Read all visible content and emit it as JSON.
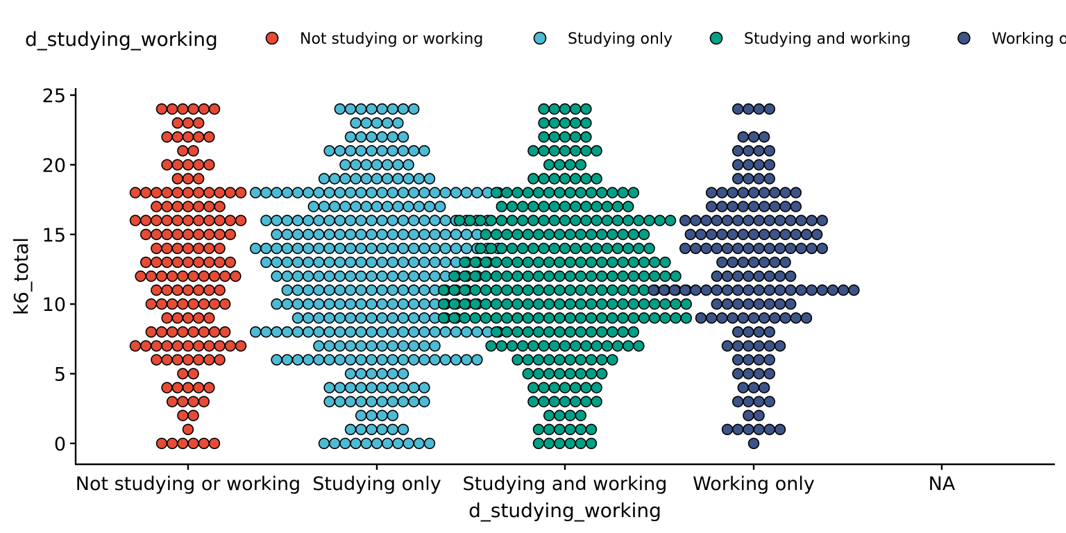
{
  "chart_data": {
    "type": "dotplot",
    "title": "",
    "xlabel": "d_studying_working",
    "ylabel": "k6_total",
    "ylim": [
      -1.5,
      25.5
    ],
    "y_ticks": [
      0,
      5,
      10,
      15,
      20,
      25
    ],
    "categories": [
      "Not studying or working",
      "Studying only",
      "Studying and working",
      "Working only",
      "NA"
    ],
    "legend": {
      "title": "d_studying_working",
      "position": "top",
      "entries": [
        "Not studying or working",
        "Studying only",
        "Studying and working",
        "Working only"
      ]
    },
    "grid": false,
    "series": [
      {
        "name": "Not studying or working",
        "color": "#E64B35",
        "counts": {
          "0": 6,
          "1": 1,
          "2": 2,
          "3": 4,
          "4": 5,
          "5": 2,
          "6": 7,
          "7": 11,
          "8": 8,
          "9": 5,
          "10": 8,
          "11": 7,
          "12": 10,
          "13": 9,
          "14": 7,
          "15": 9,
          "16": 11,
          "17": 7,
          "18": 11,
          "19": 3,
          "20": 5,
          "21": 2,
          "22": 5,
          "23": 3,
          "24": 6
        }
      },
      {
        "name": "Studying only",
        "color": "#4DBBD5",
        "counts": {
          "0": 11,
          "1": 6,
          "2": 4,
          "3": 10,
          "4": 10,
          "5": 6,
          "6": 20,
          "7": 12,
          "8": 24,
          "9": 16,
          "10": 20,
          "11": 18,
          "12": 20,
          "13": 22,
          "14": 24,
          "15": 20,
          "16": 22,
          "17": 13,
          "18": 24,
          "19": 11,
          "20": 7,
          "21": 10,
          "22": 6,
          "23": 5,
          "24": 8
        }
      },
      {
        "name": "Studying and working",
        "color": "#00A087",
        "counts": {
          "0": 6,
          "1": 6,
          "2": 4,
          "3": 7,
          "4": 7,
          "5": 8,
          "6": 10,
          "7": 15,
          "8": 14,
          "9": 24,
          "10": 24,
          "11": 24,
          "12": 22,
          "13": 20,
          "14": 17,
          "15": 16,
          "16": 21,
          "17": 13,
          "18": 14,
          "19": 7,
          "20": 4,
          "21": 7,
          "22": 5,
          "23": 5,
          "24": 5
        }
      },
      {
        "name": "Working only",
        "color": "#3C5488",
        "counts": {
          "0": 1,
          "1": 6,
          "2": 2,
          "3": 4,
          "4": 3,
          "5": 4,
          "6": 4,
          "7": 6,
          "8": 4,
          "9": 11,
          "10": 8,
          "11": 20,
          "12": 8,
          "13": 7,
          "14": 14,
          "15": 13,
          "16": 14,
          "17": 9,
          "18": 9,
          "19": 4,
          "20": 4,
          "21": 4,
          "22": 3,
          "23": 0,
          "24": 4
        }
      }
    ]
  }
}
